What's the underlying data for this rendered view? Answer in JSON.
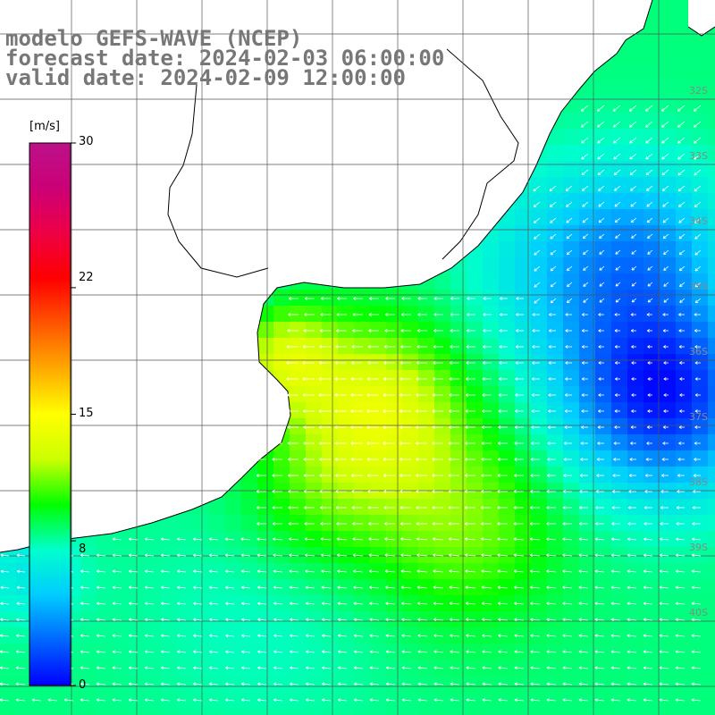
{
  "title": {
    "model": "modelo GEFS-WAVE (NCEP)",
    "forecast": "forecast date: 2024-02-03 06:00:00",
    "valid": "valid date: 2024-02-09 12:00:00"
  },
  "colorbar": {
    "unit": "[m/s]",
    "min": 0,
    "max": 30,
    "ticks": [
      "30",
      "22",
      "15",
      "8",
      "0"
    ],
    "tick_values": [
      30,
      22,
      15,
      8,
      0
    ],
    "colors": [
      "#0000ff",
      "#0066ff",
      "#00ccff",
      "#00ffcc",
      "#00ff00",
      "#ccff00",
      "#ffff00",
      "#ffaa00",
      "#ff5500",
      "#ff0000",
      "#ee0044",
      "#cc0077",
      "#bb1188"
    ]
  },
  "latitude_labels": [
    "32S",
    "33S",
    "34S",
    "35S",
    "36S",
    "37S",
    "38S",
    "39S",
    "40S"
  ],
  "map": {
    "land_color": "#ffffff",
    "grid": true,
    "vector_color": "#ffffff",
    "field": "wind speed and direction"
  }
}
